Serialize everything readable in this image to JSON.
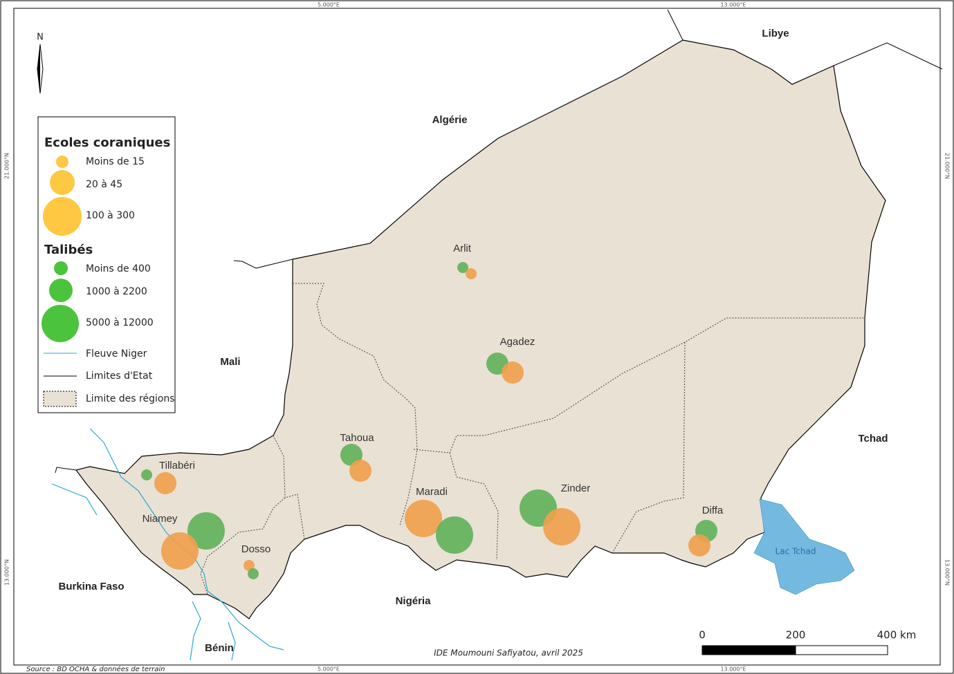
{
  "graticule": {
    "top": [
      "5.000°E",
      "13.000°E"
    ],
    "bottom": [
      "5.000°E",
      "13.000°E"
    ],
    "left": [
      "21.000°N",
      "13.000°N"
    ],
    "right": [
      "21.000°N",
      "13.000°N"
    ]
  },
  "north": "N",
  "legend": {
    "schools_title": "Ecoles coraniques",
    "schools": [
      "Moins de 15",
      "20 à 45",
      "100 à 300"
    ],
    "talibes_title": "Talibés",
    "talibes": [
      "Moins de 400",
      "1000 à 2200",
      "5000 à 12000"
    ],
    "lines": [
      "Fleuve Niger",
      "Limites d'Etat",
      "Limite des régions"
    ]
  },
  "countries": [
    "Libye",
    "Algérie",
    "Mali",
    "Tchad",
    "Burkina Faso",
    "Nigéria",
    "Bénin"
  ],
  "regions": [
    "Arlit",
    "Agadez",
    "Tahoua",
    "Tillabéri",
    "Niamey",
    "Maradi",
    "Zinder",
    "Dosso",
    "Diffa"
  ],
  "lake": "Lac Tchad",
  "scale": [
    "0",
    "200",
    "400 km"
  ],
  "credit": "IDE Moumouni Safiyatou, avril 2025",
  "source": "Source : BD OCHA & données de terrain"
}
